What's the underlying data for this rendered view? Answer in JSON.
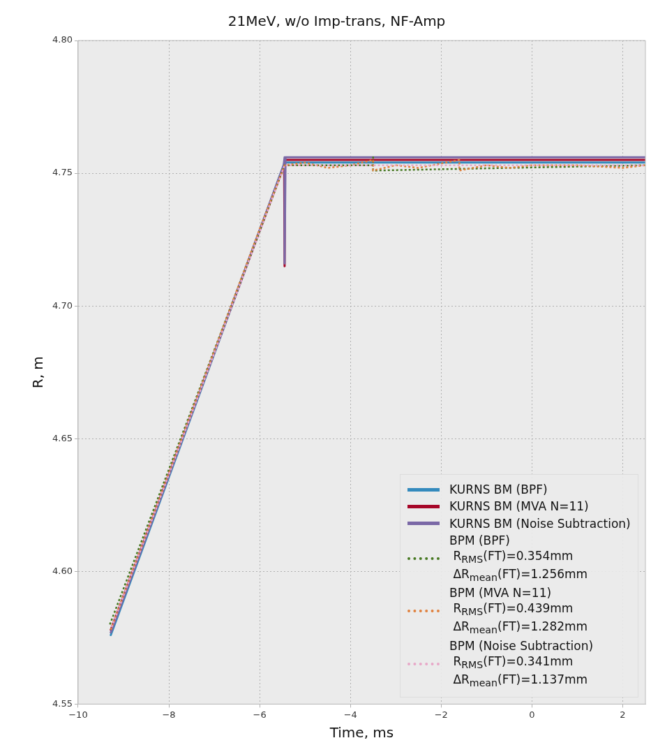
{
  "chart_data": {
    "type": "line",
    "title": "21MeV, w/o Imp-trans, NF-Amp",
    "xlabel": "Time, ms",
    "ylabel": "R, m",
    "xlim": [
      -10,
      2.5
    ],
    "xticks": [
      {
        "value": -10,
        "label": "−10"
      },
      {
        "value": -8,
        "label": "−8"
      },
      {
        "value": -6,
        "label": "−6"
      },
      {
        "value": -4,
        "label": "−4"
      },
      {
        "value": -2,
        "label": "−2"
      },
      0,
      2
    ],
    "ylim": [
      4.55,
      4.8
    ],
    "yticks": [
      4.55,
      {
        "value": 4.6,
        "label": "4.60"
      },
      4.65,
      {
        "value": 4.7,
        "label": "4.70"
      },
      4.75,
      {
        "value": 4.8,
        "label": "4.80"
      }
    ],
    "grid": true,
    "legend": "bottom right",
    "marker": "none",
    "series": [
      {
        "name": "KURNS BM (BPF)",
        "color": "#348abd",
        "line_style": "solid",
        "x": [
          -9.28,
          -5.45,
          2.5
        ],
        "values": [
          4.576,
          4.754,
          4.754
        ]
      },
      {
        "name": "KURNS BM (MVA N=11)",
        "color": "#a60628",
        "line_style": "solid",
        "x": [
          -9.28,
          -5.46,
          -5.45,
          -5.45,
          -5.44,
          2.5
        ],
        "values": [
          4.578,
          4.753,
          4.755,
          4.715,
          4.755,
          4.755
        ]
      },
      {
        "name": "KURNS BM (Noise Subtraction)",
        "color": "#7a68a6",
        "line_style": "solid",
        "x": [
          -9.28,
          -5.47,
          -5.45,
          -5.45,
          -5.43,
          2.5
        ],
        "values": [
          4.577,
          4.753,
          4.756,
          4.716,
          4.756,
          4.756
        ]
      },
      {
        "name": "BPM (BPF)\n R$_{RMS}$(FT)=0.354mm\n ΔR$_{mean}$(FT)=1.256mm",
        "color": "#467821",
        "line_style": "dotted",
        "x": [
          -9.3,
          -5.45,
          -3.5,
          -3.5,
          -3.5,
          2.5
        ],
        "values": [
          4.58,
          4.753,
          4.753,
          4.756,
          4.751,
          4.753
        ]
      },
      {
        "name": "BPM (MVA N=11)\n R$_{RMS}$(FT)=0.439mm\n ΔR$_{mean}$(FT)=1.282mm",
        "color": "#e0813e",
        "line_style": "dotted",
        "x": [
          -9.28,
          -8,
          -7,
          -6,
          -5.45,
          -5,
          -4.5,
          -4,
          -3.5,
          -3.5,
          -3,
          -2.5,
          -1.6,
          -1.6,
          -1,
          -0.5,
          0,
          1,
          2,
          2.5
        ],
        "values": [
          4.578,
          4.637,
          4.683,
          4.729,
          4.753,
          4.754,
          4.752,
          4.753,
          4.755,
          4.751,
          4.753,
          4.752,
          4.755,
          4.751,
          4.753,
          4.752,
          4.753,
          4.753,
          4.752,
          4.753
        ]
      },
      {
        "name": "BPM (Noise Subtraction)\n R$_{RMS}$(FT)=0.341mm\n ΔR$_{mean}$(FT)=1.137mm",
        "color": "#e8a8c8",
        "line_style": "dotted",
        "x": [
          -9.26,
          -5.45,
          2.5
        ],
        "values": [
          4.579,
          4.753,
          4.753
        ]
      }
    ]
  }
}
